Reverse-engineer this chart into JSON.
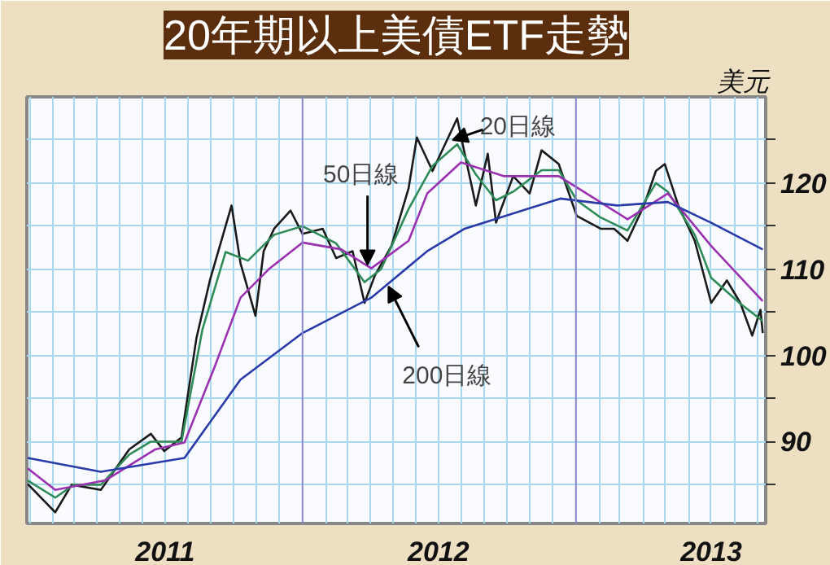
{
  "chart_data": {
    "type": "line",
    "title": "20年期以上美債ETF走勢",
    "ylabel": "美元",
    "xlim": [
      "2010-12-28",
      "2013-09-12"
    ],
    "ylim": [
      80.5,
      130
    ],
    "yticks": [
      {
        "value": 85,
        "label": null
      },
      90,
      {
        "value": 95,
        "label": null
      },
      100,
      {
        "value": 105,
        "label": null
      },
      110,
      {
        "value": 115,
        "label": null
      },
      120,
      {
        "value": 125,
        "label": null
      }
    ],
    "xticks": [
      {
        "value": "2011-01-01",
        "label": null
      },
      {
        "value": "2011-02-01",
        "label": null
      },
      {
        "value": "2011-03-01",
        "label": null
      },
      {
        "value": "2011-04-01",
        "label": null
      },
      {
        "value": "2011-05-01",
        "label": null
      },
      {
        "value": "2011-06-01",
        "label": null
      },
      {
        "value": "2011-07-01",
        "label": "2011"
      },
      {
        "value": "2011-08-01",
        "label": null
      },
      {
        "value": "2011-09-01",
        "label": null
      },
      {
        "value": "2011-10-01",
        "label": null
      },
      {
        "value": "2011-11-01",
        "label": null
      },
      {
        "value": "2011-12-01",
        "label": null
      },
      {
        "value": "2012-02-01",
        "label": null
      },
      {
        "value": "2012-03-01",
        "label": null
      },
      {
        "value": "2012-04-01",
        "label": null
      },
      {
        "value": "2012-05-01",
        "label": null
      },
      {
        "value": "2012-06-01",
        "label": null
      },
      {
        "value": "2012-07-01",
        "label": "2012"
      },
      {
        "value": "2012-08-01",
        "label": null
      },
      {
        "value": "2012-09-01",
        "label": null
      },
      {
        "value": "2012-10-01",
        "label": null
      },
      {
        "value": "2012-11-01",
        "label": null
      },
      {
        "value": "2012-12-01",
        "label": null
      },
      {
        "value": "2013-02-01",
        "label": null
      },
      {
        "value": "2013-03-01",
        "label": null
      },
      {
        "value": "2013-04-01",
        "label": null
      },
      {
        "value": "2013-05-01",
        "label": null
      },
      {
        "value": "2013-06-01",
        "label": null
      },
      {
        "value": "2013-07-01",
        "label": "2013"
      },
      {
        "value": "2013-08-01",
        "label": null
      },
      {
        "value": "2013-09-01",
        "label": null
      }
    ],
    "grid": true,
    "line_style": "solid",
    "marker": "none",
    "ref_lines": [
      {
        "axis": "x",
        "value": "2012-01-01",
        "color": "#8888cc"
      },
      {
        "axis": "x",
        "value": "2013-01-01",
        "color": "#8888cc"
      }
    ],
    "series": [
      {
        "color": "#1a1a1a",
        "x": [
          "2010-12-29",
          "2011-02-04",
          "2011-02-26",
          "2011-04-06",
          "2011-05-14",
          "2011-06-12",
          "2011-06-30",
          "2011-07-23",
          "2011-08-12",
          "2011-08-30",
          "2011-09-28",
          "2011-10-10",
          "2011-10-30",
          "2011-11-10",
          "2011-11-24",
          "2011-12-16",
          "2012-01-01",
          "2012-01-28",
          "2012-02-15",
          "2012-03-08",
          "2012-03-24",
          "2012-04-07",
          "2012-04-29",
          "2012-05-22",
          "2012-06-02",
          "2012-06-23",
          "2012-07-26",
          "2012-08-20",
          "2012-09-05",
          "2012-09-16",
          "2012-10-09",
          "2012-10-31",
          "2012-11-16",
          "2012-12-09",
          "2013-01-02",
          "2013-02-03",
          "2013-02-21",
          "2013-03-11",
          "2013-04-02",
          "2013-04-18",
          "2013-04-30",
          "2013-05-18",
          "2013-06-09",
          "2013-07-01",
          "2013-07-22",
          "2013-08-09",
          "2013-08-25",
          "2013-09-05",
          "2013-09-08"
        ],
        "values": [
          85.1,
          81.8,
          85.0,
          84.4,
          89.1,
          90.9,
          88.9,
          90.5,
          102,
          108.7,
          117.4,
          110.7,
          104.6,
          112.1,
          114.7,
          116.8,
          114.1,
          114.7,
          111.3,
          112.1,
          106.1,
          109.3,
          112.7,
          119.4,
          125.3,
          121.4,
          127.5,
          117.4,
          123.4,
          115.4,
          120.8,
          118.8,
          123.8,
          122.2,
          116.2,
          114.7,
          114.7,
          113.3,
          117.4,
          121.4,
          122.2,
          117.4,
          113.3,
          106.1,
          108.7,
          106.1,
          102.3,
          105.3,
          102.6
        ]
      },
      {
        "color": "#2e8b57",
        "x": [
          "2010-12-29",
          "2011-02-04",
          "2011-03-01",
          "2011-04-06",
          "2011-05-14",
          "2011-06-12",
          "2011-07-23",
          "2011-08-20",
          "2011-09-20",
          "2011-10-20",
          "2011-11-24",
          "2012-01-01",
          "2012-02-15",
          "2012-03-24",
          "2012-04-15",
          "2012-05-22",
          "2012-06-23",
          "2012-07-26",
          "2012-08-20",
          "2012-09-16",
          "2012-10-09",
          "2012-11-16",
          "2012-12-09",
          "2013-01-02",
          "2013-02-03",
          "2013-03-11",
          "2013-04-18",
          "2013-05-04",
          "2013-06-09",
          "2013-07-01",
          "2013-08-09",
          "2013-09-08"
        ],
        "values": [
          85.5,
          83.5,
          85.0,
          85.0,
          88.5,
          90.0,
          90.0,
          103,
          112,
          111,
          114,
          115,
          113,
          108.5,
          110,
          117,
          122,
          124.5,
          121,
          118,
          119,
          121.5,
          121.5,
          118,
          116,
          114.5,
          120,
          119,
          114,
          109,
          106,
          104
        ]
      },
      {
        "color": "#9b30b0",
        "x": [
          "2010-12-29",
          "2011-02-04",
          "2011-04-12",
          "2011-06-18",
          "2011-07-27",
          "2011-09-05",
          "2011-10-10",
          "2011-11-18",
          "2012-01-01",
          "2012-02-22",
          "2012-04-02",
          "2012-05-22",
          "2012-06-16",
          "2012-07-31",
          "2012-09-27",
          "2012-12-09",
          "2013-01-26",
          "2013-03-11",
          "2013-05-04",
          "2013-07-01",
          "2013-09-08"
        ],
        "values": [
          86.9,
          84.4,
          85.5,
          89.1,
          89.9,
          98.6,
          106.7,
          110.1,
          113.1,
          112.3,
          110.1,
          113.3,
          118.8,
          122.4,
          120.8,
          120.8,
          118.2,
          115.8,
          118.8,
          112.7,
          106.3
        ]
      },
      {
        "color": "#2a3aa8",
        "x": [
          "2010-12-29",
          "2011-04-06",
          "2011-07-27",
          "2011-10-10",
          "2012-01-01",
          "2012-04-02",
          "2012-06-16",
          "2012-08-05",
          "2012-12-11",
          "2013-02-25",
          "2013-05-04",
          "2013-07-01",
          "2013-09-08"
        ],
        "values": [
          88.1,
          86.5,
          88.1,
          97.2,
          102.6,
          106.7,
          112.1,
          114.7,
          118.2,
          117.4,
          117.8,
          115.4,
          112.3
        ]
      }
    ],
    "annotations": [
      {
        "text": "50日線",
        "x": "2012-03-28",
        "y": 110.5
      },
      {
        "text": "20日線",
        "x": "2012-07-20",
        "y": 125
      },
      {
        "text": "200日線",
        "x": "2012-04-25",
        "y": 108
      }
    ]
  }
}
